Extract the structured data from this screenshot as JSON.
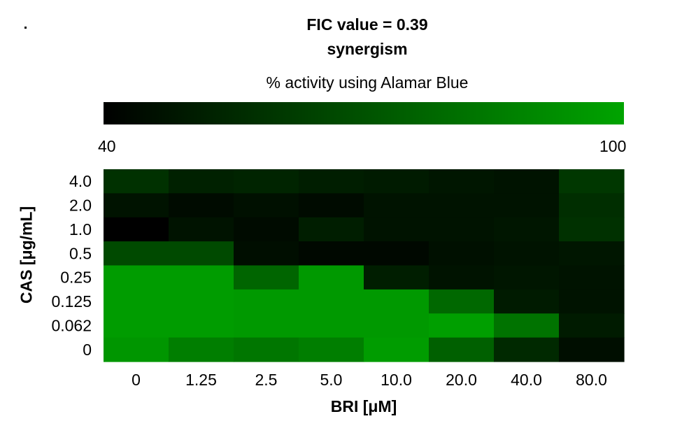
{
  "header": {
    "title_line1": "FIC value = 0.39",
    "title_line2": "synergism"
  },
  "colorbar": {
    "label": "% activity using Alamar Blue",
    "min_label": "40",
    "max_label": "100",
    "min_color": "#000000",
    "max_color": "#00a400"
  },
  "chart_data": {
    "type": "heatmap",
    "title": "FIC value = 0.39",
    "subtitle": "synergism",
    "xlabel": "BRI [μM]",
    "ylabel": "CAS [μg/mL]",
    "colorbar_label": "% activity using Alamar Blue",
    "value_range": [
      40,
      100
    ],
    "x": [
      "0",
      "1.25",
      "2.5",
      "5.0",
      "10.0",
      "20.0",
      "40.0",
      "80.0"
    ],
    "y": [
      "4.0",
      "2.0",
      "1.0",
      "0.5",
      "0.25",
      "0.125",
      "0.062",
      "0"
    ],
    "values": [
      [
        58,
        52,
        53,
        51,
        50,
        48,
        47,
        60
      ],
      [
        47,
        44,
        46,
        44,
        47,
        47,
        47,
        57
      ],
      [
        40,
        47,
        44,
        51,
        47,
        47,
        48,
        58
      ],
      [
        67,
        67,
        45,
        43,
        43,
        46,
        47,
        48
      ],
      [
        97,
        97,
        77,
        96,
        51,
        47,
        48,
        47
      ],
      [
        97,
        97,
        96,
        96,
        96,
        78,
        50,
        47
      ],
      [
        97,
        97,
        96,
        96,
        96,
        98,
        82,
        50
      ],
      [
        95,
        86,
        83,
        86,
        97,
        75,
        55,
        45
      ]
    ]
  }
}
